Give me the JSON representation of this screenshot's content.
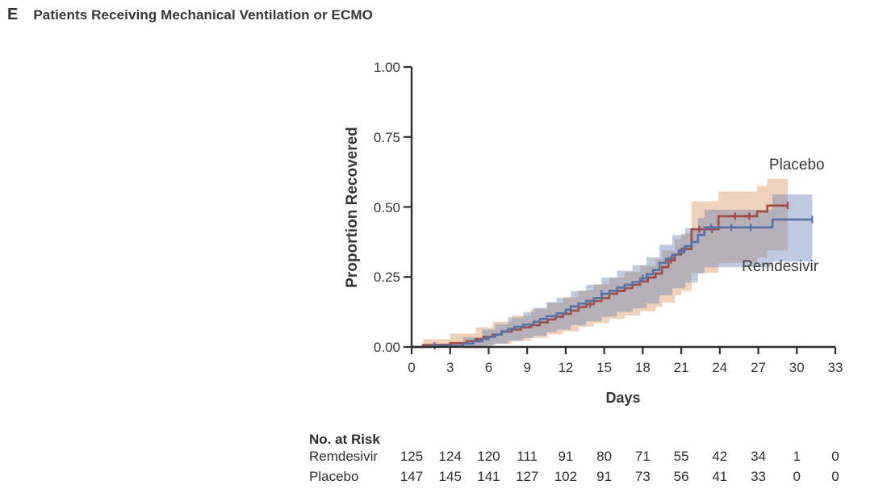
{
  "panel": {
    "letter": "E",
    "title": "Patients Receiving Mechanical Ventilation or ECMO"
  },
  "chart_data": {
    "type": "line",
    "subtype": "kaplan_meier_step",
    "title": "Patients Receiving Mechanical Ventilation or ECMO",
    "xlabel": "Days",
    "ylabel": "Proportion Recovered",
    "xlim": [
      0,
      33
    ],
    "ylim": [
      0,
      1
    ],
    "xticks": [
      0,
      3,
      6,
      9,
      12,
      15,
      18,
      21,
      24,
      27,
      30,
      33
    ],
    "yticks": [
      {
        "v": 0.0,
        "label": "0.00"
      },
      {
        "v": 0.25,
        "label": "0.25"
      },
      {
        "v": 0.5,
        "label": "0.50"
      },
      {
        "v": 0.75,
        "label": "0.75"
      },
      {
        "v": 1.0,
        "label": "1.00"
      }
    ],
    "grid": false,
    "legend_position": "in-plot-text-labels",
    "axis_color": "#2d2d2d",
    "series": [
      {
        "name": "Placebo",
        "label_text": "Placebo",
        "label_anchor": {
          "day": 30.0,
          "prop": 0.648
        },
        "line_color": "#a14b42",
        "band_color": "#d98c50",
        "band_opacity": 0.4,
        "end_day": 29.3,
        "steps": [
          [
            0,
            0
          ],
          [
            0.9,
            0.007
          ],
          [
            3,
            0.014
          ],
          [
            4.3,
            0.021
          ],
          [
            5,
            0.028
          ],
          [
            5.6,
            0.036
          ],
          [
            6.3,
            0.044
          ],
          [
            7,
            0.054
          ],
          [
            7.8,
            0.062
          ],
          [
            8.5,
            0.07
          ],
          [
            9.3,
            0.078
          ],
          [
            10,
            0.088
          ],
          [
            10.6,
            0.098
          ],
          [
            11.2,
            0.108
          ],
          [
            11.8,
            0.118
          ],
          [
            12.4,
            0.13
          ],
          [
            13,
            0.142
          ],
          [
            13.6,
            0.153
          ],
          [
            14.2,
            0.164
          ],
          [
            14.8,
            0.175
          ],
          [
            15.4,
            0.19
          ],
          [
            16,
            0.2
          ],
          [
            16.6,
            0.21
          ],
          [
            17.2,
            0.222
          ],
          [
            17.8,
            0.234
          ],
          [
            18.4,
            0.248
          ],
          [
            19,
            0.262
          ],
          [
            19.5,
            0.285
          ],
          [
            20,
            0.31
          ],
          [
            20.5,
            0.33
          ],
          [
            21,
            0.35
          ],
          [
            21.8,
            0.42
          ],
          [
            23.9,
            0.467
          ],
          [
            26.9,
            0.484
          ],
          [
            27.7,
            0.505
          ]
        ],
        "band": [
          [
            0,
            0,
            0
          ],
          [
            0.9,
            0,
            0.028
          ],
          [
            3,
            0.001,
            0.048
          ],
          [
            5,
            0.004,
            0.07
          ],
          [
            6.3,
            0.012,
            0.09
          ],
          [
            7.8,
            0.022,
            0.112
          ],
          [
            9.3,
            0.032,
            0.135
          ],
          [
            10.6,
            0.045,
            0.158
          ],
          [
            11.8,
            0.056,
            0.178
          ],
          [
            13,
            0.072,
            0.202
          ],
          [
            14.2,
            0.085,
            0.224
          ],
          [
            15.4,
            0.1,
            0.248
          ],
          [
            16.6,
            0.112,
            0.268
          ],
          [
            17.8,
            0.128,
            0.29
          ],
          [
            19,
            0.143,
            0.315
          ],
          [
            19.5,
            0.158,
            0.345
          ],
          [
            20.5,
            0.185,
            0.385
          ],
          [
            21,
            0.2,
            0.405
          ],
          [
            21.8,
            0.265,
            0.52
          ],
          [
            23.9,
            0.3,
            0.555
          ],
          [
            26.9,
            0.32,
            0.575
          ],
          [
            27.7,
            0.345,
            0.6
          ]
        ],
        "censor_days": [
          13.9,
          20.2,
          22.4,
          23.4,
          25.2,
          26.3,
          29.3
        ]
      },
      {
        "name": "Remdesivir",
        "label_text": "Remdesivir",
        "label_anchor": {
          "day": 28.7,
          "prop": 0.285
        },
        "line_color": "#5472a8",
        "band_color": "#6480b5",
        "band_opacity": 0.42,
        "end_day": 31.2,
        "steps": [
          [
            0,
            0
          ],
          [
            1.5,
            0.004
          ],
          [
            4,
            0.012
          ],
          [
            4.8,
            0.02
          ],
          [
            5.5,
            0.028
          ],
          [
            6,
            0.036
          ],
          [
            6.5,
            0.044
          ],
          [
            7,
            0.056
          ],
          [
            7.5,
            0.064
          ],
          [
            8,
            0.072
          ],
          [
            8.7,
            0.08
          ],
          [
            9.5,
            0.09
          ],
          [
            10,
            0.1
          ],
          [
            10.5,
            0.11
          ],
          [
            11.3,
            0.12
          ],
          [
            12,
            0.133
          ],
          [
            12.4,
            0.145
          ],
          [
            13,
            0.155
          ],
          [
            13.6,
            0.165
          ],
          [
            14.2,
            0.175
          ],
          [
            14.8,
            0.19
          ],
          [
            15.4,
            0.2
          ],
          [
            16,
            0.212
          ],
          [
            16.6,
            0.222
          ],
          [
            17.2,
            0.232
          ],
          [
            17.8,
            0.245
          ],
          [
            18.3,
            0.26
          ],
          [
            18.8,
            0.275
          ],
          [
            19.3,
            0.3
          ],
          [
            19.8,
            0.315
          ],
          [
            20.3,
            0.33
          ],
          [
            20.8,
            0.345
          ],
          [
            21.3,
            0.36
          ],
          [
            21.8,
            0.375
          ],
          [
            22.3,
            0.4
          ],
          [
            22.8,
            0.427
          ],
          [
            28.1,
            0.455
          ]
        ],
        "band": [
          [
            0,
            0,
            0
          ],
          [
            1.5,
            0,
            0.012
          ],
          [
            4,
            0,
            0.035
          ],
          [
            5.5,
            0.005,
            0.062
          ],
          [
            6.5,
            0.012,
            0.082
          ],
          [
            7.5,
            0.022,
            0.105
          ],
          [
            8.7,
            0.032,
            0.125
          ],
          [
            9.5,
            0.04,
            0.14
          ],
          [
            10.5,
            0.052,
            0.16
          ],
          [
            11.3,
            0.062,
            0.175
          ],
          [
            12.4,
            0.078,
            0.2
          ],
          [
            13.6,
            0.092,
            0.222
          ],
          [
            14.8,
            0.108,
            0.248
          ],
          [
            16,
            0.125,
            0.272
          ],
          [
            17.2,
            0.138,
            0.292
          ],
          [
            18.3,
            0.155,
            0.32
          ],
          [
            19.3,
            0.185,
            0.365
          ],
          [
            20.3,
            0.21,
            0.4
          ],
          [
            21.3,
            0.23,
            0.425
          ],
          [
            22.3,
            0.262,
            0.46
          ],
          [
            22.8,
            0.285,
            0.49
          ],
          [
            28.1,
            0.305,
            0.545
          ]
        ],
        "censor_days": [
          1.8,
          14.8,
          18.0,
          21.2,
          23.3,
          24.9,
          26.4,
          31.2
        ]
      }
    ],
    "no_at_risk": {
      "heading": "No. at Risk",
      "days": [
        0,
        3,
        6,
        9,
        12,
        15,
        18,
        21,
        24,
        27,
        30,
        33
      ],
      "rows": [
        {
          "label": "Remdesivir",
          "values": [
            125,
            124,
            120,
            111,
            91,
            80,
            71,
            55,
            42,
            34,
            1,
            0
          ]
        },
        {
          "label": "Placebo",
          "values": [
            147,
            145,
            141,
            127,
            102,
            91,
            73,
            56,
            41,
            33,
            0,
            0
          ]
        }
      ]
    }
  }
}
